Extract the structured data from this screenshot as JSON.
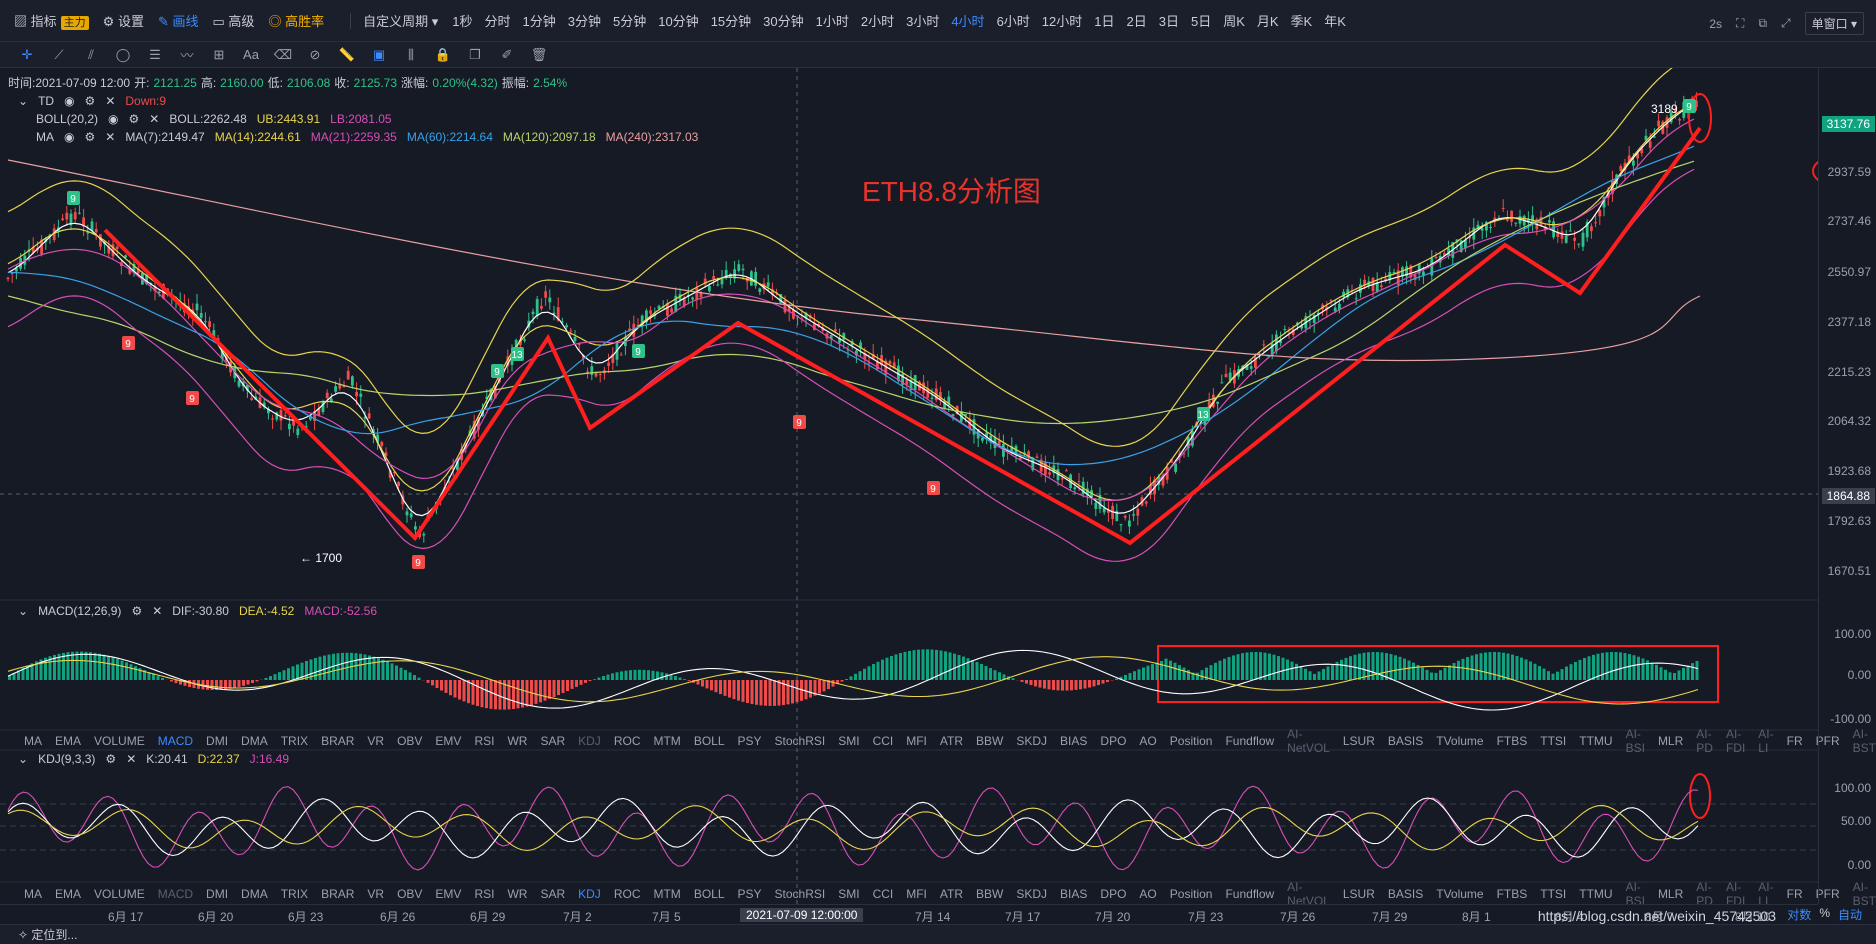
{
  "topbar": {
    "items": [
      {
        "label": "指标",
        "badge": "主力"
      },
      {
        "label": "设置"
      },
      {
        "label": "画线"
      },
      {
        "label": "高级"
      },
      {
        "label": "高胜率"
      },
      {
        "label": "自定义周期"
      }
    ],
    "periods": [
      "1秒",
      "分时",
      "1分钟",
      "3分钟",
      "5分钟",
      "10分钟",
      "15分钟",
      "30分钟",
      "1小时",
      "2小时",
      "3小时",
      "4小时",
      "6小时",
      "12小时",
      "1日",
      "2日",
      "3日",
      "5日",
      "周K",
      "月K",
      "季K",
      "年K"
    ],
    "active_period": "4小时",
    "refresh": "2s",
    "window_mode": "单窗口"
  },
  "drawing_tools": [
    "crosshair-icon",
    "trendline-icon",
    "parallel-icon",
    "circle-icon",
    "fib-icon",
    "wave-icon",
    "measure-icon",
    "text-icon",
    "eraser-icon",
    "eraser2-icon",
    "ruler-icon",
    "magnet-icon",
    "candle-icon",
    "lock-icon",
    "copy-icon",
    "edit-icon",
    "trash-icon"
  ],
  "info": {
    "time": "时间:2021-07-09 12:00",
    "open_label": "开:",
    "open": "2121.25",
    "high_label": "高:",
    "high": "2160.00",
    "low_label": "低:",
    "low": "2106.08",
    "close_label": "收:",
    "close": "2125.73",
    "change_label": "涨幅:",
    "change": "0.20%(4.32)",
    "amp_label": "振幅:",
    "amp": "2.54%",
    "td": "TD",
    "td_val": "Down:9",
    "boll": "BOLL(20,2)",
    "boll_val": "BOLL:2262.48",
    "boll_ub": "UB:2443.91",
    "boll_lb": "LB:2081.05",
    "ma": "MA",
    "ma7": "MA(7):2149.47",
    "ma14": "MA(14):2244.61",
    "ma21": "MA(21):2259.35",
    "ma60": "MA(60):2214.64",
    "ma120": "MA(120):2097.18",
    "ma240": "MA(240):2317.03"
  },
  "annotation": "ETH8.8分析图",
  "price_axis": {
    "labels": [
      "2937.59",
      "2737.46",
      "2550.97",
      "2377.18",
      "2215.23",
      "2064.32",
      "1923.68",
      "1792.63",
      "1670.51"
    ],
    "current_price": "3137.76",
    "cursor_price": "1864.88",
    "high_marker": "3189",
    "low_marker": "← 1700"
  },
  "macd": {
    "label": "MACD(12,26,9)",
    "dif": "DIF:-30.80",
    "dea": "DEA:-4.52",
    "macd": "MACD:-52.56",
    "axis": [
      "100.00",
      "0.00",
      "-100.00"
    ]
  },
  "kdj": {
    "label": "KDJ(9,3,3)",
    "k": "K:20.41",
    "d": "D:22.37",
    "j": "J:16.49",
    "axis": [
      "100.00",
      "50.00",
      "0.00"
    ]
  },
  "indicator_tabs": [
    "MA",
    "EMA",
    "VOLUME",
    "MACD",
    "DMI",
    "DMA",
    "TRIX",
    "BRAR",
    "VR",
    "OBV",
    "EMV",
    "RSI",
    "WR",
    "SAR",
    "KDJ",
    "ROC",
    "MTM",
    "BOLL",
    "PSY",
    "StochRSI",
    "SMI",
    "CCI",
    "MFI",
    "ATR",
    "BBW",
    "SKDJ",
    "BIAS",
    "DPO",
    "AO",
    "Position",
    "Fundflow",
    "AI-NetVOL",
    "LSUR",
    "BASIS",
    "TVolume",
    "FTBS",
    "TTSI",
    "TTMU",
    "AI-BSI",
    "MLR",
    "AI-PD",
    "AI-FDI",
    "AI-LI",
    "FR",
    "PFR",
    "AI-BST"
  ],
  "indicator_tabs_active_1": "MACD",
  "indicator_tabs_active_2": "KDJ",
  "x_axis": [
    "6月 17",
    "6月 20",
    "6月 23",
    "6月 26",
    "6月 29",
    "7月 2",
    "7月 5",
    "7月 14",
    "7月 17",
    "7月 20",
    "7月 23",
    "7月 26",
    "7月 29",
    "8月 1",
    "8月 4",
    "8月 7",
    "8月 10"
  ],
  "x_cursor": "2021-07-09 12:00:00",
  "bottom": {
    "locate": "定位到...",
    "log": "对数",
    "pct": "%",
    "auto": "自动"
  },
  "watermark": "https://blog.csdn.net/weixin_45742503",
  "td_markers": [
    "9",
    "9",
    "9",
    "9",
    "13",
    "9",
    "9",
    "9",
    "9",
    "13",
    "9"
  ],
  "colors": {
    "up": "#2ec28a",
    "down": "#f04b4b",
    "accent": "#3d8bfd",
    "annotation": "#e8332b"
  }
}
